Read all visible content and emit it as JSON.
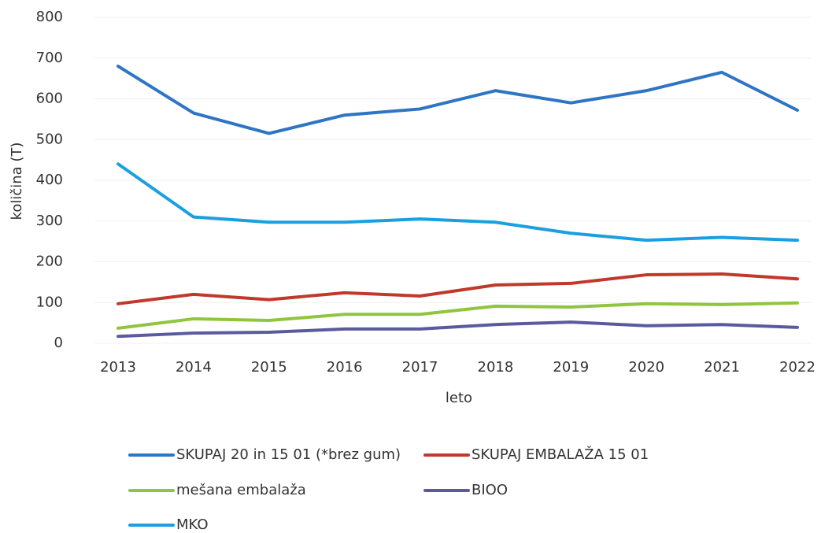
{
  "chart_data": {
    "type": "line",
    "y_label": "količina (T)",
    "x_label": "leto",
    "categories": [
      "2013",
      "2014",
      "2015",
      "2016",
      "2017",
      "2018",
      "2019",
      "2020",
      "2021",
      "2022"
    ],
    "ylim": [
      0,
      800
    ],
    "yticks": [
      0,
      100,
      200,
      300,
      400,
      500,
      600,
      700,
      800
    ],
    "grid": true,
    "series": [
      {
        "name": "SKUPAJ 20 in 15 01 (*brez gum)",
        "color": "#2e75c6",
        "values": [
          680,
          565,
          515,
          560,
          575,
          620,
          590,
          620,
          665,
          572
        ]
      },
      {
        "name": "SKUPAJ EMBALAŽA 15 01",
        "color": "#c0392b",
        "values": [
          97,
          120,
          107,
          124,
          116,
          143,
          147,
          168,
          170,
          158
        ]
      },
      {
        "name": "mešana embalaža",
        "color": "#8fc63e",
        "values": [
          37,
          60,
          56,
          71,
          71,
          91,
          89,
          97,
          95,
          99
        ]
      },
      {
        "name": "BIOO",
        "color": "#5a5a9f",
        "values": [
          17,
          25,
          27,
          35,
          35,
          46,
          52,
          43,
          46,
          39
        ]
      },
      {
        "name": "MKO",
        "color": "#1aa0e0",
        "values": [
          440,
          310,
          297,
          297,
          305,
          297,
          270,
          253,
          260,
          253
        ]
      }
    ]
  }
}
